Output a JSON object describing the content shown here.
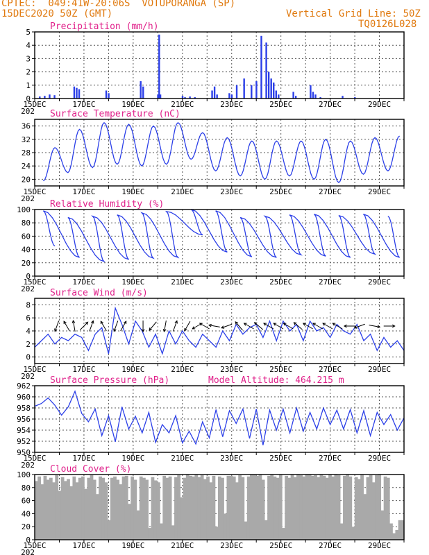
{
  "header": {
    "line1": "CPTEC:  049:41W-20:06S  VOTUPORANGA (SP)",
    "line2": "15DEC2020 50Z (GMT)",
    "grid_note": "Vertical Grid Line: 50Z",
    "code": "TQ0126L028"
  },
  "colors": {
    "header": "#e07a10",
    "title": "#e0208a",
    "line": "#2b3fe8",
    "bar": "#2b3fe8",
    "cloud": "#a9a9a9",
    "grid": "#555555"
  },
  "chart_data": [
    {
      "type": "bar",
      "title": "Precipitation (mm/h)",
      "x_start": "15DEC",
      "x_days": 15,
      "x_tick_labels": [
        "15DEC",
        "17DEC",
        "19DEC",
        "21DEC",
        "23DEC",
        "25DEC",
        "27DEC",
        "29DEC"
      ],
      "clip_label": "202",
      "ylim": [
        0,
        5
      ],
      "yticks": [
        0,
        1,
        2,
        3,
        4,
        5
      ],
      "grid": true,
      "x": [
        0.2,
        0.4,
        0.6,
        0.8,
        1.6,
        1.7,
        1.8,
        2.9,
        3.0,
        4.3,
        4.4,
        5.0,
        5.05,
        5.1,
        6.0,
        6.1,
        6.3,
        6.5,
        7.2,
        7.3,
        7.4,
        7.9,
        8.0,
        8.2,
        8.5,
        8.8,
        9.0,
        9.2,
        9.4,
        9.5,
        9.6,
        9.7,
        9.8,
        9.9,
        10.5,
        10.6,
        11.2,
        11.3,
        11.4,
        11.6,
        12.5,
        13.0
      ],
      "values": [
        0.15,
        0.2,
        0.3,
        0.25,
        0.9,
        0.8,
        0.7,
        0.6,
        0.4,
        1.3,
        0.9,
        0.3,
        4.8,
        0.3,
        0.2,
        0.1,
        0.15,
        0.1,
        0.6,
        0.9,
        0.3,
        0.4,
        0.3,
        1.0,
        1.5,
        1.0,
        1.3,
        4.7,
        4.2,
        2.0,
        1.5,
        1.2,
        0.6,
        0.3,
        0.5,
        0.2,
        1.0,
        0.5,
        0.3,
        0.1,
        0.2,
        0.1
      ]
    },
    {
      "type": "line",
      "title": "Surface Temperature (nC)",
      "ylim": [
        18,
        38
      ],
      "yticks": [
        20,
        24,
        28,
        32,
        36
      ],
      "grid": true,
      "x_tick_labels": [
        "15DEC",
        "17DEC",
        "19DEC",
        "21DEC",
        "23DEC",
        "25DEC",
        "27DEC",
        "29DEC"
      ],
      "x_days": 15,
      "maxima": [
        29.5,
        35.0,
        37.0,
        36.5,
        36.0,
        37.0,
        34.0,
        32.5,
        31.5,
        31.5,
        31.5,
        32.0,
        31.5,
        32.5,
        33.0
      ],
      "minima": [
        19.5,
        22.0,
        23.5,
        24.5,
        24.0,
        24.5,
        26.0,
        22.5,
        21.0,
        20.0,
        21.0,
        20.0,
        19.0,
        21.5,
        22.5
      ]
    },
    {
      "type": "line",
      "title": "Relative Humidity (%)",
      "ylim": [
        0,
        100
      ],
      "yticks": [
        0,
        20,
        40,
        60,
        80,
        100
      ],
      "grid": true,
      "x_tick_labels": [
        "15DEC",
        "17DEC",
        "19DEC",
        "21DEC",
        "23DEC",
        "25DEC",
        "27DEC",
        "29DEC"
      ],
      "x_days": 15,
      "maxima": [
        98,
        88,
        90,
        92,
        95,
        97,
        100,
        98,
        88,
        90,
        92,
        93,
        91,
        93,
        90
      ],
      "minima": [
        45,
        28,
        22,
        25,
        27,
        28,
        62,
        36,
        29,
        28,
        32,
        30,
        28,
        33,
        28
      ]
    },
    {
      "type": "line",
      "title": "Surface Wind (m/s)",
      "ylim": [
        -1,
        9
      ],
      "yticks": [
        0,
        2,
        4,
        6,
        8
      ],
      "grid": true,
      "x_tick_labels": [
        "15DEC",
        "17DEC",
        "19DEC",
        "21DEC",
        "23DEC",
        "25DEC",
        "27DEC",
        "29DEC"
      ],
      "x_days": 15,
      "values": [
        1.5,
        2.5,
        3.5,
        2.0,
        3.0,
        2.5,
        3.5,
        3.0,
        1.0,
        3.5,
        4.5,
        0.5,
        7.5,
        5.0,
        2.0,
        5.5,
        4.0,
        1.5,
        3.5,
        0.5,
        4.0,
        2.0,
        4.0,
        2.5,
        1.5,
        3.5,
        2.5,
        1.5,
        4.0,
        2.5,
        5.0,
        3.5,
        4.5,
        5.0,
        3.0,
        5.5,
        2.5,
        5.5,
        4.0,
        5.0,
        2.5,
        5.5,
        4.0,
        4.5,
        3.0,
        5.0,
        4.0,
        3.5,
        5.0,
        2.5,
        3.5,
        1.0,
        3.0,
        1.5,
        2.5,
        1.0
      ],
      "arrows": [
        {
          "day": 0.9,
          "dir": 200
        },
        {
          "day": 1.3,
          "dir": 330
        },
        {
          "day": 1.6,
          "dir": 350
        },
        {
          "day": 2.0,
          "dir": 45
        },
        {
          "day": 2.3,
          "dir": 20
        },
        {
          "day": 2.8,
          "dir": 330
        },
        {
          "day": 3.3,
          "dir": 200
        },
        {
          "day": 3.6,
          "dir": 30
        },
        {
          "day": 4.4,
          "dir": 180
        },
        {
          "day": 4.8,
          "dir": 220
        },
        {
          "day": 5.3,
          "dir": 190
        },
        {
          "day": 5.7,
          "dir": 20
        },
        {
          "day": 6.2,
          "dir": 210
        },
        {
          "day": 6.6,
          "dir": 240
        },
        {
          "day": 6.9,
          "dir": 300
        },
        {
          "day": 7.3,
          "dir": 280
        },
        {
          "day": 7.8,
          "dir": 250
        },
        {
          "day": 8.3,
          "dir": 320
        },
        {
          "day": 8.7,
          "dir": 300
        },
        {
          "day": 9.1,
          "dir": 310
        },
        {
          "day": 9.5,
          "dir": 300
        },
        {
          "day": 9.9,
          "dir": 300
        },
        {
          "day": 10.3,
          "dir": 300
        },
        {
          "day": 10.7,
          "dir": 310
        },
        {
          "day": 11.1,
          "dir": 300
        },
        {
          "day": 11.5,
          "dir": 300
        },
        {
          "day": 11.9,
          "dir": 300
        },
        {
          "day": 12.3,
          "dir": 300
        },
        {
          "day": 12.8,
          "dir": 270
        },
        {
          "day": 13.2,
          "dir": 250
        },
        {
          "day": 13.8,
          "dir": 100
        },
        {
          "day": 14.4,
          "dir": 90
        }
      ]
    },
    {
      "type": "line",
      "title": "Surface Pressure (hPa)",
      "annotation": "Model Altitude: 464.215 m",
      "ylim": [
        950,
        962
      ],
      "yticks": [
        950,
        952,
        954,
        956,
        958,
        960,
        962
      ],
      "grid": true,
      "x_tick_labels": [
        "15DEC",
        "17DEC",
        "19DEC",
        "21DEC",
        "23DEC",
        "25DEC",
        "27DEC",
        "29DEC"
      ],
      "x_days": 15,
      "values": [
        958.3,
        958.8,
        959.8,
        958.5,
        956.7,
        958.2,
        961.0,
        957.0,
        955.5,
        957.8,
        953.0,
        956.6,
        951.9,
        958.2,
        954.2,
        956.5,
        953.5,
        957.2,
        951.8,
        955.0,
        953.5,
        956.6,
        951.7,
        953.8,
        951.5,
        955.5,
        952.6,
        957.7,
        952.8,
        957.5,
        955.2,
        957.8,
        952.5,
        957.8,
        951.3,
        957.6,
        954.0,
        957.8,
        953.5,
        958.0,
        953.8,
        957.2,
        954.2,
        958.0,
        955.0,
        957.6,
        954.2,
        957.7,
        953.5,
        957.5,
        953.0,
        957.2,
        955.0,
        956.8,
        954.0,
        956.2
      ]
    },
    {
      "type": "area",
      "title": "Cloud Cover (%)",
      "ylim": [
        0,
        100
      ],
      "yticks": [
        0,
        20,
        40,
        60,
        80,
        100
      ],
      "grid": true,
      "x_tick_labels": [
        "15DEC",
        "17DEC",
        "19DEC",
        "21DEC",
        "23DEC",
        "25DEC",
        "27DEC",
        "29DEC"
      ],
      "x_days": 15,
      "values": [
        90,
        97,
        85,
        98,
        92,
        95,
        88,
        99,
        75,
        96,
        90,
        93,
        82,
        97,
        88,
        95,
        97,
        78,
        95,
        99,
        92,
        70,
        97,
        95,
        88,
        30,
        95,
        97,
        92,
        85,
        97,
        98,
        55,
        97,
        92,
        45,
        97,
        95,
        92,
        18,
        96,
        91,
        88,
        25,
        98,
        95,
        97,
        22,
        96,
        99,
        65,
        95,
        100,
        98,
        97,
        100,
        96,
        99,
        93,
        97,
        88,
        98,
        20,
        97,
        95,
        40,
        98,
        98,
        97,
        88,
        99,
        96,
        28,
        97,
        100,
        100,
        98,
        100,
        92,
        30,
        98,
        100,
        97,
        95,
        100,
        18,
        98,
        95,
        100,
        96,
        100,
        99,
        97,
        100,
        100,
        98,
        99,
        96,
        100,
        98,
        95,
        100,
        97,
        100,
        99,
        25,
        98,
        100,
        97,
        20,
        96,
        93,
        100,
        70,
        96,
        99,
        88,
        99,
        100,
        45,
        97,
        95,
        25,
        10,
        15,
        30,
        30
      ]
    }
  ]
}
